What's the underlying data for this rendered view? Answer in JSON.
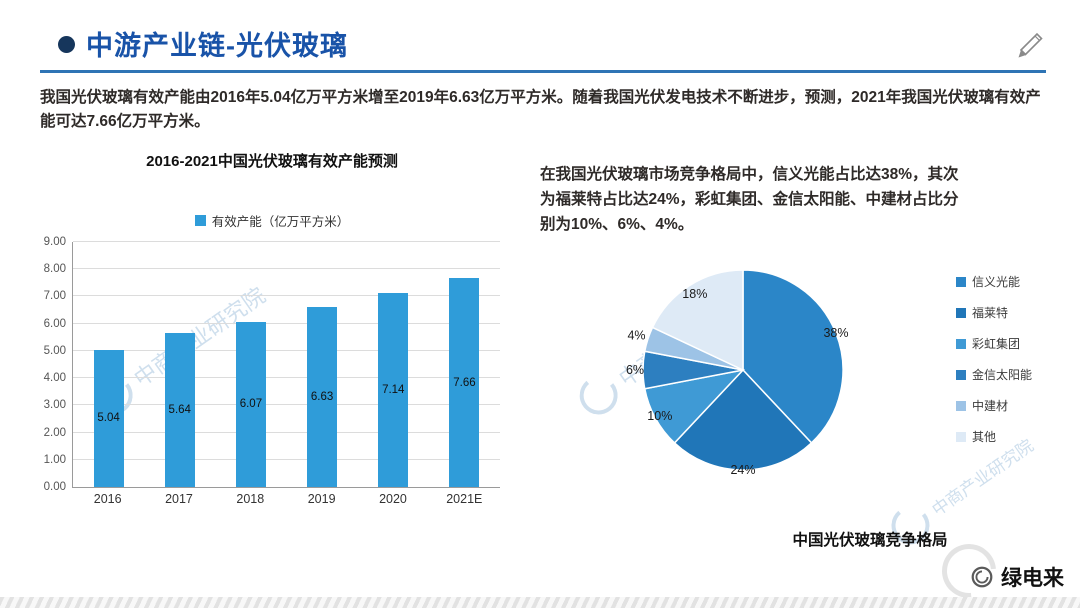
{
  "header": {
    "title": "中游产业链-光伏玻璃"
  },
  "texts": {
    "intro": "我国光伏玻璃有效产能由2016年5.04亿万平方米增至2019年6.63亿万平方米。随着我国光伏发电技术不断进步，预测，2021年我国光伏玻璃有效产能可达7.66亿万平方米。",
    "competition": "在我国光伏玻璃市场竞争格局中，信义光能占比达38%，其次为福莱特占比达24%，彩虹集团、金信太阳能、中建材占比分别为10%、6%、4%。"
  },
  "watermark": {
    "text": "中商产业研究院"
  },
  "brand": {
    "name": "绿电来"
  },
  "chart_data": [
    {
      "type": "bar",
      "title": "2016-2021中国光伏玻璃有效产能预测",
      "legend_label": "有效产能（亿万平方米）",
      "categories": [
        "2016",
        "2017",
        "2018",
        "2019",
        "2020",
        "2021E"
      ],
      "values": [
        5.04,
        5.64,
        6.07,
        6.63,
        7.14,
        7.66
      ],
      "ylim": [
        0,
        9
      ],
      "ytick_step": 1,
      "ytick_labels": [
        "0.00",
        "1.00",
        "2.00",
        "3.00",
        "4.00",
        "5.00",
        "6.00",
        "7.00",
        "8.00",
        "9.00"
      ],
      "bar_color": "#2F9CD9",
      "grid": true,
      "legend_position": "top"
    },
    {
      "type": "pie",
      "title": "中国光伏玻璃竞争格局",
      "slices": [
        {
          "label": "信义光能",
          "value": 38,
          "color": "#2B86C8"
        },
        {
          "label": "福莱特",
          "value": 24,
          "color": "#2076B8"
        },
        {
          "label": "彩虹集团",
          "value": 10,
          "color": "#3F9AD5"
        },
        {
          "label": "金信太阳能",
          "value": 6,
          "color": "#2D7FC0"
        },
        {
          "label": "中建材",
          "value": 4,
          "color": "#9DC3E6"
        },
        {
          "label": "其他",
          "value": 18,
          "color": "#DEEAF6"
        }
      ],
      "start_angle": 0,
      "direction": "clockwise",
      "label_format": "percent",
      "legend_position": "right"
    }
  ]
}
